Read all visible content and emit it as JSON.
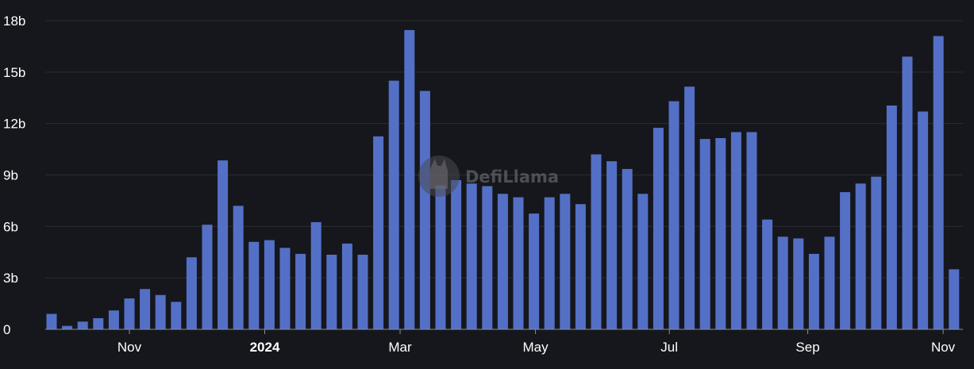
{
  "chart_data": {
    "type": "bar",
    "title": "",
    "xlabel": "",
    "ylabel": "",
    "ylim": [
      0,
      18
    ],
    "y_unit": "b",
    "grid": true,
    "y_ticks": [
      {
        "value": 0,
        "label": "0"
      },
      {
        "value": 3,
        "label": "3b"
      },
      {
        "value": 6,
        "label": "6b"
      },
      {
        "value": 9,
        "label": "9b"
      },
      {
        "value": 12,
        "label": "12b"
      },
      {
        "value": 15,
        "label": "15b"
      },
      {
        "value": 18,
        "label": "18b"
      }
    ],
    "x_ticks": [
      {
        "index": 5,
        "label": "Nov",
        "bold": false
      },
      {
        "index": 13.7,
        "label": "2024",
        "bold": true
      },
      {
        "index": 22.4,
        "label": "Mar",
        "bold": false
      },
      {
        "index": 31.1,
        "label": "May",
        "bold": false
      },
      {
        "index": 39.7,
        "label": "Jul",
        "bold": false
      },
      {
        "index": 48.6,
        "label": "Sep",
        "bold": false
      },
      {
        "index": 57.3,
        "label": "Nov",
        "bold": false
      }
    ],
    "values": [
      0.9,
      0.2,
      0.45,
      0.65,
      1.1,
      1.8,
      2.35,
      2.0,
      1.6,
      4.2,
      6.1,
      9.85,
      7.2,
      5.1,
      5.2,
      4.75,
      4.4,
      6.25,
      4.35,
      5.0,
      4.35,
      11.25,
      14.5,
      17.45,
      13.9,
      8.4,
      8.7,
      8.5,
      8.35,
      7.9,
      7.7,
      6.75,
      7.7,
      7.9,
      7.3,
      10.2,
      9.8,
      9.35,
      7.9,
      11.75,
      13.3,
      14.15,
      11.1,
      11.15,
      11.5,
      11.5,
      6.4,
      5.4,
      5.3,
      4.4,
      5.4,
      8.0,
      8.5,
      8.9,
      13.05,
      15.9,
      12.7,
      17.1,
      3.5
    ]
  },
  "watermark": {
    "text": "DefiLlama",
    "icon": "llama-icon"
  },
  "colors": {
    "background": "#16171c",
    "bar": "#5470c6",
    "grid": "#2a2c33",
    "text": "#ffffff"
  }
}
